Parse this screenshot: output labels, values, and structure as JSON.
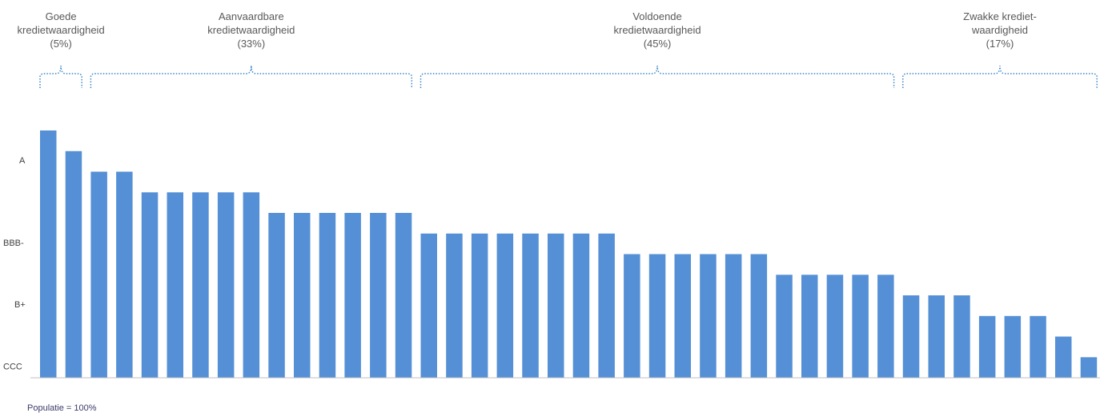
{
  "chart_data": {
    "type": "bar",
    "title": "",
    "xlabel": "",
    "ylabel": "",
    "y_ticks": [
      "A",
      "BBB-",
      "B+",
      "CCC"
    ],
    "y_tick_values": [
      11,
      7,
      4,
      1
    ],
    "ylim": [
      0,
      12
    ],
    "grid": false,
    "legend": "none",
    "bar_color": "#5590d6",
    "values": [
      12,
      11,
      10,
      10,
      9,
      9,
      9,
      9,
      9,
      8,
      8,
      8,
      8,
      8,
      8,
      7,
      7,
      7,
      7,
      7,
      7,
      7,
      7,
      6,
      6,
      6,
      6,
      6,
      6,
      5,
      5,
      5,
      5,
      5,
      4,
      4,
      4,
      3,
      3,
      3,
      2,
      1
    ],
    "groups": [
      {
        "label": "Goede\nkredietwaardigheid",
        "share": "(5%)",
        "first_bar": 0,
        "last_bar": 1
      },
      {
        "label": "Aanvaardbare\nkredietwaardigheid",
        "share": "(33%)",
        "first_bar": 2,
        "last_bar": 14
      },
      {
        "label": "Voldoende\nkredietwaardigheid",
        "share": "(45%)",
        "first_bar": 15,
        "last_bar": 33
      },
      {
        "label": "Zwakke krediet-\nwaardigheid",
        "share": "(17%)",
        "first_bar": 34,
        "last_bar": 41
      }
    ],
    "footnote": "Populatie = 100%"
  }
}
